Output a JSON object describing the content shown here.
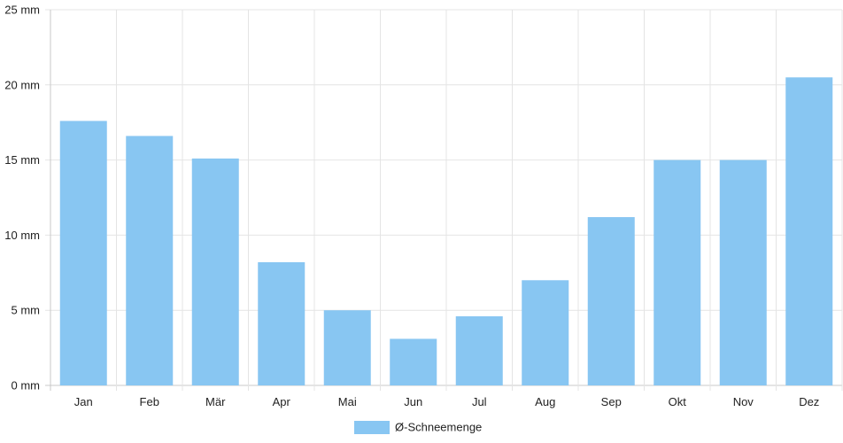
{
  "chart_data": {
    "type": "bar",
    "categories": [
      "Jan",
      "Feb",
      "Mär",
      "Apr",
      "Mai",
      "Jun",
      "Jul",
      "Aug",
      "Sep",
      "Okt",
      "Nov",
      "Dez"
    ],
    "series": [
      {
        "name": "Ø-Schneemenge",
        "values": [
          17.6,
          16.6,
          15.1,
          8.2,
          5.0,
          3.1,
          4.6,
          7.0,
          11.2,
          15.0,
          15.0,
          20.5
        ],
        "color": "#88c6f2"
      }
    ],
    "y_ticks": [
      "0 mm",
      "5 mm",
      "10 mm",
      "15 mm",
      "20 mm",
      "25 mm"
    ],
    "ylim": [
      0,
      25
    ],
    "y_unit": "mm",
    "grid": true,
    "legend_position": "bottom-center",
    "title": "",
    "xlabel": "",
    "ylabel": ""
  }
}
